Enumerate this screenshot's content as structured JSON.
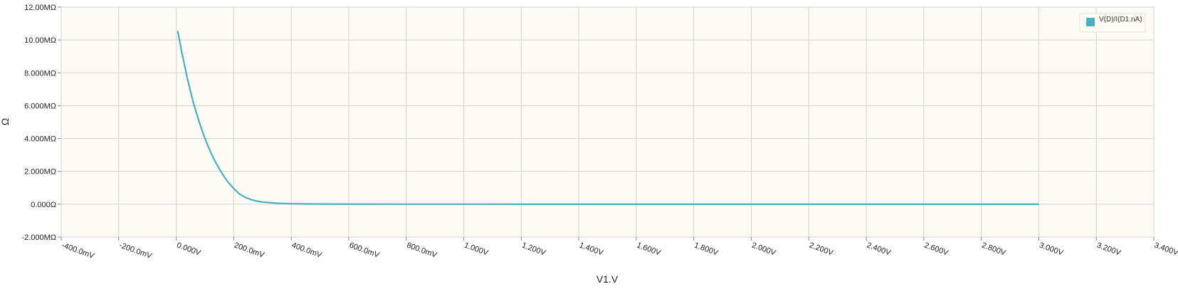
{
  "chart_data": {
    "type": "line",
    "title": "",
    "xlabel": "V1.V",
    "ylabel": "Ω",
    "xlim": [
      -0.4,
      3.4
    ],
    "ylim": [
      -2.0,
      12.0
    ],
    "grid": true,
    "legend_position": "top-right",
    "x_ticks": [
      {
        "value": -0.4,
        "label": "-400.0mV"
      },
      {
        "value": -0.2,
        "label": "-200.0mV"
      },
      {
        "value": 0.0,
        "label": "0.000V"
      },
      {
        "value": 0.2,
        "label": "200.0mV"
      },
      {
        "value": 0.4,
        "label": "400.0mV"
      },
      {
        "value": 0.6,
        "label": "600.0mV"
      },
      {
        "value": 0.8,
        "label": "800.0mV"
      },
      {
        "value": 1.0,
        "label": "1.000V"
      },
      {
        "value": 1.2,
        "label": "1.200V"
      },
      {
        "value": 1.4,
        "label": "1.400V"
      },
      {
        "value": 1.6,
        "label": "1.600V"
      },
      {
        "value": 1.8,
        "label": "1.800V"
      },
      {
        "value": 2.0,
        "label": "2.000V"
      },
      {
        "value": 2.2,
        "label": "2.200V"
      },
      {
        "value": 2.4,
        "label": "2.400V"
      },
      {
        "value": 2.6,
        "label": "2.600V"
      },
      {
        "value": 2.8,
        "label": "2.800V"
      },
      {
        "value": 3.0,
        "label": "3.000V"
      },
      {
        "value": 3.2,
        "label": "3.200V"
      },
      {
        "value": 3.4,
        "label": "3.400V"
      }
    ],
    "y_ticks": [
      {
        "value": 12.0,
        "label": "12.00MΩ"
      },
      {
        "value": 10.0,
        "label": "10.00MΩ"
      },
      {
        "value": 8.0,
        "label": "8.000MΩ"
      },
      {
        "value": 6.0,
        "label": "6.000MΩ"
      },
      {
        "value": 4.0,
        "label": "4.000MΩ"
      },
      {
        "value": 2.0,
        "label": "2.000MΩ"
      },
      {
        "value": 0.0,
        "label": "0.000Ω"
      },
      {
        "value": -2.0,
        "label": "-2.000MΩ"
      }
    ],
    "series": [
      {
        "name": "V(D)/I(D1.nA)",
        "color": "#4aaec4",
        "x": [
          0.005,
          0.02,
          0.04,
          0.06,
          0.08,
          0.1,
          0.12,
          0.14,
          0.16,
          0.18,
          0.2,
          0.22,
          0.24,
          0.26,
          0.28,
          0.3,
          0.35,
          0.4,
          0.45,
          0.5,
          0.6,
          0.8,
          1.0,
          1.5,
          2.0,
          2.5,
          3.0
        ],
        "y": [
          10.55,
          9.2,
          7.55,
          6.15,
          5.0,
          4.0,
          3.15,
          2.45,
          1.85,
          1.35,
          0.95,
          0.62,
          0.42,
          0.28,
          0.19,
          0.13,
          0.06,
          0.03,
          0.015,
          0.01,
          0.005,
          0.002,
          0.001,
          0.0005,
          0.0003,
          0.0002,
          0.0001
        ]
      }
    ]
  },
  "colors": {
    "plot_background": "#fdfbf4",
    "grid": "#d3d3d3",
    "series": "#4aaec4"
  }
}
